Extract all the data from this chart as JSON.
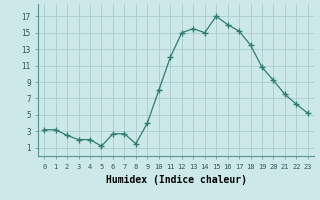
{
  "x": [
    0,
    1,
    2,
    3,
    4,
    5,
    6,
    7,
    8,
    9,
    10,
    11,
    12,
    13,
    14,
    15,
    16,
    17,
    18,
    19,
    20,
    21,
    22,
    23
  ],
  "y": [
    3.2,
    3.2,
    2.5,
    2.0,
    2.0,
    1.2,
    2.7,
    2.7,
    1.5,
    4.0,
    8.0,
    12.0,
    15.0,
    15.5,
    15.0,
    17.0,
    16.0,
    15.2,
    13.5,
    10.8,
    9.2,
    7.5,
    6.3,
    5.2
  ],
  "line_color": "#2e7d6e",
  "marker": "+",
  "marker_size": 4,
  "bg_color": "#cce8e8",
  "grid_color": "#aacccc",
  "xlabel": "Humidex (Indice chaleur)",
  "xlabel_fontsize": 7,
  "ylabel_ticks": [
    1,
    3,
    5,
    7,
    9,
    11,
    13,
    15,
    17
  ],
  "xtick_labels": [
    "0",
    "1",
    "2",
    "3",
    "4",
    "5",
    "6",
    "7",
    "8",
    "9",
    "10",
    "11",
    "12",
    "13",
    "14",
    "15",
    "16",
    "17",
    "18",
    "19",
    "20",
    "21",
    "22",
    "23"
  ],
  "ylim": [
    0,
    18.5
  ],
  "xlim": [
    -0.5,
    23.5
  ],
  "spine_color": "#5a9090"
}
